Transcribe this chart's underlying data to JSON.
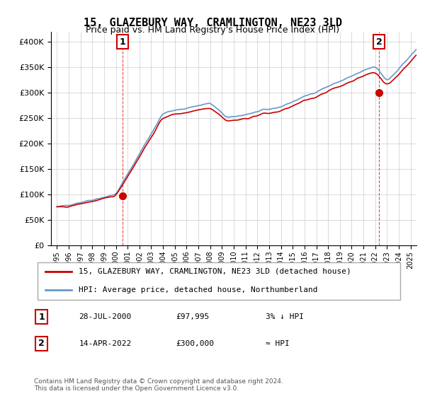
{
  "title": "15, GLAZEBURY WAY, CRAMLINGTON, NE23 3LD",
  "subtitle": "Price paid vs. HM Land Registry's House Price Index (HPI)",
  "legend_line1": "15, GLAZEBURY WAY, CRAMLINGTON, NE23 3LD (detached house)",
  "legend_line2": "HPI: Average price, detached house, Northumberland",
  "annotation1_label": "1",
  "annotation1_date": "28-JUL-2000",
  "annotation1_price": "£97,995",
  "annotation1_rel": "3% ↓ HPI",
  "annotation2_label": "2",
  "annotation2_date": "14-APR-2022",
  "annotation2_price": "£300,000",
  "annotation2_rel": "≈ HPI",
  "footnote": "Contains HM Land Registry data © Crown copyright and database right 2024.\nThis data is licensed under the Open Government Licence v3.0.",
  "hpi_color": "#6699cc",
  "price_color": "#cc0000",
  "dot_color": "#cc0000",
  "annotation_box_color": "#cc0000",
  "background_color": "#ffffff",
  "grid_color": "#cccccc",
  "ylim": [
    0,
    420000
  ],
  "yticks": [
    0,
    50000,
    100000,
    150000,
    200000,
    250000,
    300000,
    350000,
    400000
  ],
  "xlim_start": 1994.5,
  "xlim_end": 2025.5
}
